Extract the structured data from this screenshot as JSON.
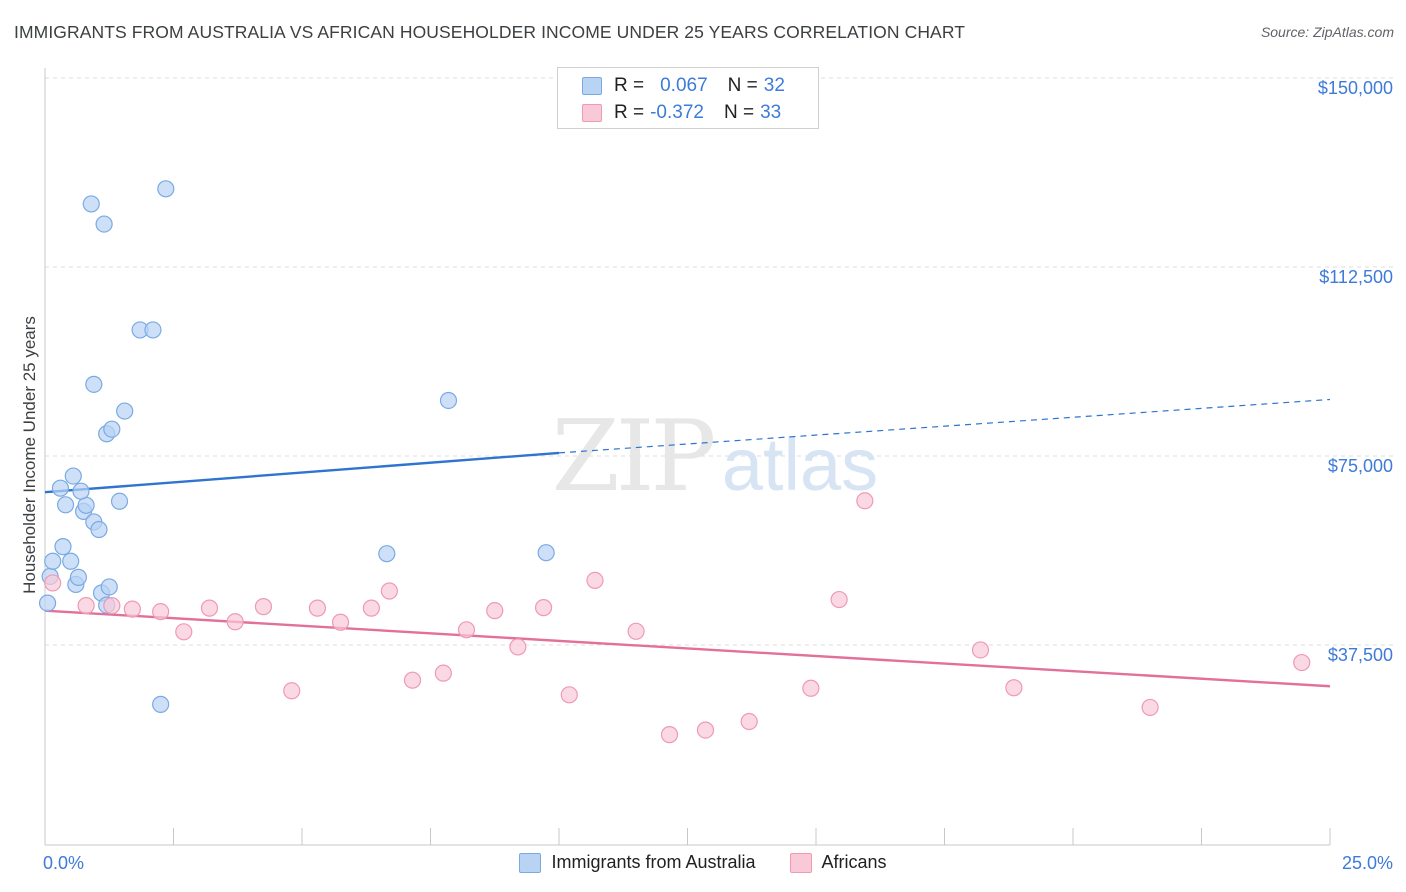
{
  "title": "IMMIGRANTS FROM AUSTRALIA VS AFRICAN HOUSEHOLDER INCOME UNDER 25 YEARS CORRELATION CHART",
  "source": "Source: ZipAtlas.com",
  "watermark": {
    "zip": "ZIP",
    "atlas": "atlas"
  },
  "colors": {
    "blue_fill": "#b9d3f5",
    "blue_stroke": "#7aaae3",
    "blue_line": "#2f74cf",
    "pink_fill": "#f9c9d8",
    "pink_stroke": "#ee9ab4",
    "pink_line": "#e2709a",
    "axis_text": "#3d7bd8",
    "grid": "#dcdcdc"
  },
  "legend": {
    "rows": [
      {
        "r_label": "R =",
        "r_value": "0.067",
        "n_label": "N =",
        "n_value": "32"
      },
      {
        "r_label": "R =",
        "r_value": "-0.372",
        "n_label": "N =",
        "n_value": "33"
      }
    ]
  },
  "chart_data": {
    "type": "scatter",
    "title": "IMMIGRANTS FROM AUSTRALIA VS AFRICAN HOUSEHOLDER INCOME UNDER 25 YEARS CORRELATION CHART",
    "xlabel": "",
    "ylabel": "Householder Income Under 25 years",
    "xlim": [
      0,
      25
    ],
    "ylim": [
      0,
      155000
    ],
    "x_tick_labels": [
      "0.0%",
      "25.0%"
    ],
    "y_tick_labels": [
      "$150,000",
      "$112,500",
      "$75,000",
      "$37,500"
    ],
    "y_ticks": [
      150000,
      112500,
      75000,
      37500
    ],
    "grid": true,
    "legend_placement": "top-center",
    "series": [
      {
        "name": "Immigrants from Australia",
        "color": "#b9d3f5",
        "trend": {
          "x": [
            0,
            10
          ],
          "y": [
            69800,
            77600
          ],
          "x_dashed_end": 25,
          "y_dashed_end": 88200
        },
        "points": [
          [
            0.05,
            47800
          ],
          [
            0.1,
            53100
          ],
          [
            0.15,
            56100
          ],
          [
            0.3,
            70600
          ],
          [
            0.35,
            59000
          ],
          [
            0.4,
            67300
          ],
          [
            0.5,
            56100
          ],
          [
            0.55,
            73000
          ],
          [
            0.6,
            51500
          ],
          [
            0.65,
            52900
          ],
          [
            0.75,
            66000
          ],
          [
            0.8,
            67200
          ],
          [
            0.95,
            63900
          ],
          [
            0.9,
            127000
          ],
          [
            1.05,
            62400
          ],
          [
            0.95,
            91200
          ],
          [
            1.1,
            49800
          ],
          [
            1.2,
            47400
          ],
          [
            1.15,
            123000
          ],
          [
            1.25,
            51000
          ],
          [
            1.2,
            81400
          ],
          [
            1.3,
            82300
          ],
          [
            1.45,
            68000
          ],
          [
            1.55,
            85900
          ],
          [
            1.85,
            102000
          ],
          [
            2.1,
            102000
          ],
          [
            2.35,
            130000
          ],
          [
            2.25,
            27700
          ],
          [
            6.65,
            57600
          ],
          [
            7.85,
            88000
          ],
          [
            9.75,
            57800
          ],
          [
            0.7,
            70000
          ]
        ]
      },
      {
        "name": "Africans",
        "color": "#f9c9d8",
        "trend": {
          "x": [
            0,
            25
          ],
          "y": [
            46300,
            31300
          ]
        },
        "points": [
          [
            0.15,
            51800
          ],
          [
            0.8,
            47300
          ],
          [
            1.3,
            47300
          ],
          [
            1.7,
            46600
          ],
          [
            2.25,
            46100
          ],
          [
            2.7,
            42100
          ],
          [
            3.2,
            46800
          ],
          [
            3.7,
            44100
          ],
          [
            4.25,
            47100
          ],
          [
            4.8,
            30400
          ],
          [
            5.3,
            46800
          ],
          [
            5.75,
            44000
          ],
          [
            6.35,
            46800
          ],
          [
            6.7,
            50200
          ],
          [
            7.15,
            32500
          ],
          [
            7.75,
            33900
          ],
          [
            8.2,
            42500
          ],
          [
            8.75,
            46300
          ],
          [
            9.2,
            39100
          ],
          [
            9.7,
            46900
          ],
          [
            10.2,
            29600
          ],
          [
            10.7,
            52300
          ],
          [
            11.5,
            42200
          ],
          [
            12.15,
            21700
          ],
          [
            12.85,
            22600
          ],
          [
            13.7,
            24300
          ],
          [
            14.9,
            30900
          ],
          [
            15.45,
            48500
          ],
          [
            15.95,
            68100
          ],
          [
            18.2,
            38500
          ],
          [
            18.85,
            31000
          ],
          [
            21.5,
            27100
          ],
          [
            24.45,
            36000
          ]
        ]
      }
    ]
  }
}
